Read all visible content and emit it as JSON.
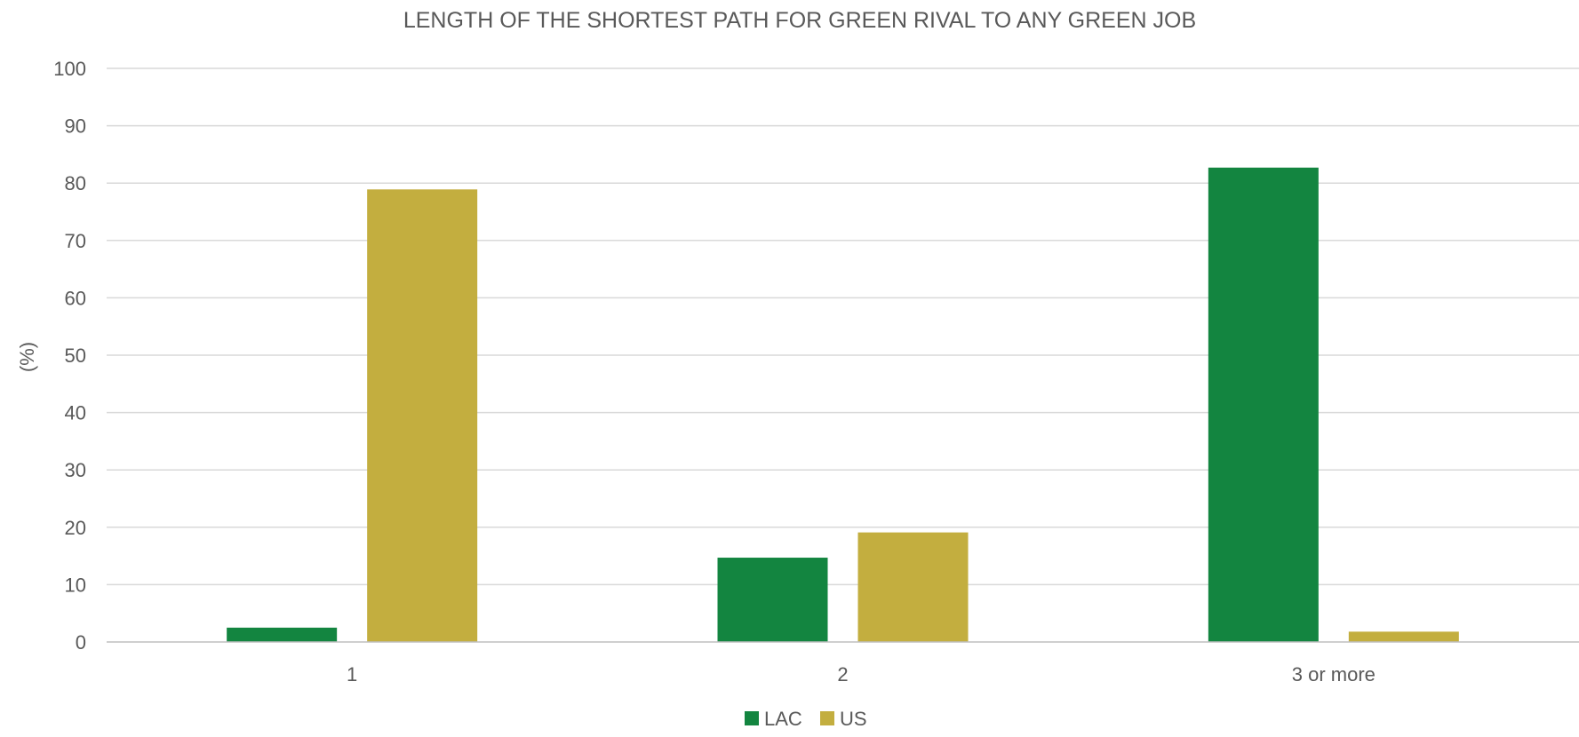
{
  "chart_data": {
    "type": "bar",
    "title": "LENGTH OF THE SHORTEST PATH FOR GREEN RIVAL TO ANY GREEN JOB",
    "xlabel": "",
    "ylabel": "(%)",
    "categories": [
      "1",
      "2",
      "3 or more"
    ],
    "series": [
      {
        "name": "LAC",
        "color": "#138540",
        "values": [
          2.5,
          14.7,
          82.7
        ]
      },
      {
        "name": "US",
        "color": "#c3ae3f",
        "values": [
          78.9,
          19.1,
          1.8
        ]
      }
    ],
    "ylim": [
      0,
      100
    ],
    "yticks": [
      0,
      10,
      20,
      30,
      40,
      50,
      60,
      70,
      80,
      90,
      100
    ],
    "grid": true,
    "legend": "bottom"
  }
}
